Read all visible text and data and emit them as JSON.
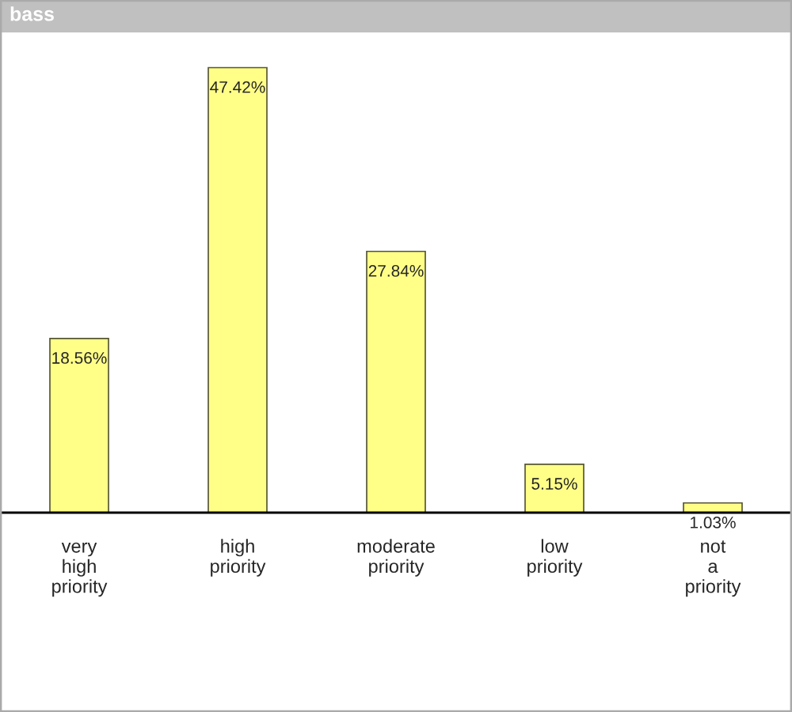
{
  "chart_data": {
    "type": "bar",
    "title": "bass",
    "categories": [
      "very high priority",
      "high priority",
      "moderate priority",
      "low priority",
      "not a priority"
    ],
    "values": [
      18.56,
      47.42,
      27.84,
      5.15,
      1.03
    ],
    "value_labels": [
      "18.56%",
      "47.42%",
      "27.84%",
      "5.15%",
      "1.03%"
    ],
    "color": "#ffff88",
    "grid": false,
    "legend": false
  }
}
